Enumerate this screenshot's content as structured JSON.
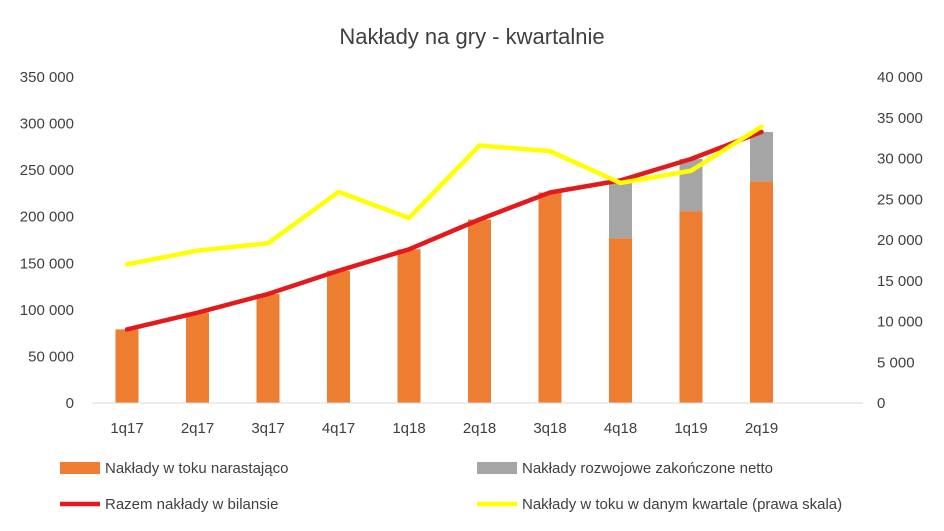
{
  "chart_data": {
    "type": "bar",
    "title": "Nakłady na gry - kwartalnie",
    "categories": [
      "1q17",
      "2q17",
      "3q17",
      "4q17",
      "1q18",
      "2q18",
      "3q18",
      "4q18",
      "1q19",
      "2q19"
    ],
    "left_axis": {
      "range": [
        0,
        350000
      ],
      "ticks": [
        0,
        50000,
        100000,
        150000,
        200000,
        250000,
        300000,
        350000
      ],
      "tick_labels": [
        "0",
        "50 000",
        "100 000",
        "150 000",
        "200 000",
        "250 000",
        "300 000",
        "350 000"
      ]
    },
    "right_axis": {
      "range": [
        0,
        40000
      ],
      "ticks": [
        0,
        5000,
        10000,
        15000,
        20000,
        25000,
        30000,
        35000,
        40000
      ],
      "tick_labels": [
        "0",
        "5 000",
        "10 000",
        "15 000",
        "20 000",
        "25 000",
        "30 000",
        "35 000",
        "40 000"
      ]
    },
    "grid": false,
    "legend_position": "bottom",
    "series": [
      {
        "name": "Nakłady w toku narastająco",
        "kind": "stacked-bar",
        "axis": "left",
        "color": "#ED7D31",
        "values": [
          79000,
          97000,
          117000,
          142000,
          165000,
          197000,
          226000,
          177000,
          206000,
          238000
        ]
      },
      {
        "name": "Nakłady rozwojowe zakończone netto",
        "kind": "stacked-bar",
        "axis": "left",
        "color": "#A5A5A5",
        "values": [
          0,
          0,
          0,
          0,
          0,
          0,
          0,
          62000,
          56000,
          53000
        ]
      },
      {
        "name": "Razem nakłady w bilansie",
        "kind": "line",
        "axis": "left",
        "color": "#E31A1C",
        "values": [
          79000,
          97000,
          117000,
          142000,
          165000,
          197000,
          226000,
          239000,
          262000,
          291000
        ]
      },
      {
        "name": "Nakłady w toku w danym kwartale (prawa skala)",
        "kind": "line",
        "axis": "right",
        "color": "#FFFF00",
        "values": [
          17000,
          18700,
          19600,
          25900,
          22700,
          31600,
          30900,
          27000,
          28500,
          33900
        ]
      }
    ]
  }
}
